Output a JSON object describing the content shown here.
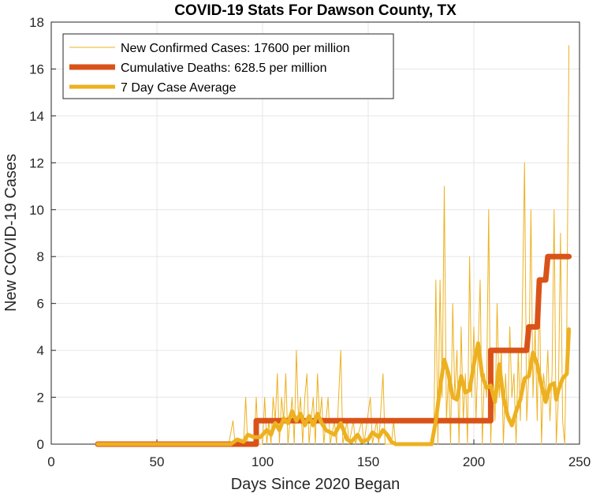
{
  "chart_data": {
    "type": "line",
    "title": "COVID-19 Stats For Dawson County, TX",
    "xlabel": "Days Since 2020 Began",
    "ylabel": "New COVID-19 Cases",
    "xlim": [
      0,
      250
    ],
    "ylim": [
      0,
      18
    ],
    "xticks": [
      0,
      50,
      100,
      150,
      200,
      250
    ],
    "yticks": [
      0,
      2,
      4,
      6,
      8,
      10,
      12,
      14,
      16,
      18
    ],
    "grid": true,
    "legend_position": "top-left",
    "series": [
      {
        "name": "New Confirmed Cases: 17600 per million",
        "color": "#EDB120",
        "style": "thin",
        "points": [
          [
            22,
            0
          ],
          [
            84,
            0
          ],
          [
            86,
            1
          ],
          [
            87,
            0
          ],
          [
            91,
            0
          ],
          [
            92,
            2
          ],
          [
            93,
            0
          ],
          [
            96,
            0
          ],
          [
            97,
            2
          ],
          [
            98,
            0
          ],
          [
            100,
            0
          ],
          [
            101,
            2
          ],
          [
            102,
            0
          ],
          [
            103,
            1
          ],
          [
            104,
            0
          ],
          [
            105,
            2
          ],
          [
            106,
            1
          ],
          [
            107,
            3
          ],
          [
            108,
            0
          ],
          [
            109,
            2
          ],
          [
            110,
            1
          ],
          [
            111,
            3
          ],
          [
            112,
            0
          ],
          [
            113,
            1
          ],
          [
            114,
            2
          ],
          [
            115,
            0
          ],
          [
            116,
            4
          ],
          [
            117,
            1
          ],
          [
            118,
            2
          ],
          [
            119,
            0
          ],
          [
            120,
            2
          ],
          [
            121,
            3
          ],
          [
            122,
            0
          ],
          [
            123,
            1
          ],
          [
            124,
            2
          ],
          [
            125,
            0
          ],
          [
            126,
            3
          ],
          [
            127,
            1
          ],
          [
            128,
            2
          ],
          [
            129,
            0
          ],
          [
            130,
            1
          ],
          [
            131,
            2
          ],
          [
            132,
            0
          ],
          [
            134,
            1
          ],
          [
            135,
            0
          ],
          [
            137,
            4
          ],
          [
            138,
            0
          ],
          [
            140,
            1
          ],
          [
            141,
            0
          ],
          [
            143,
            1
          ],
          [
            144,
            0
          ],
          [
            147,
            1
          ],
          [
            148,
            0
          ],
          [
            151,
            2
          ],
          [
            152,
            0
          ],
          [
            154,
            1
          ],
          [
            155,
            0
          ],
          [
            157,
            3
          ],
          [
            158,
            0
          ],
          [
            161,
            0
          ],
          [
            162,
            1
          ],
          [
            163,
            0
          ],
          [
            181,
            0
          ],
          [
            182,
            7
          ],
          [
            183,
            0
          ],
          [
            184,
            7
          ],
          [
            185,
            2
          ],
          [
            186,
            11
          ],
          [
            187,
            1
          ],
          [
            188,
            3
          ],
          [
            189,
            0
          ],
          [
            190,
            6
          ],
          [
            191,
            2
          ],
          [
            192,
            4
          ],
          [
            193,
            0
          ],
          [
            194,
            5
          ],
          [
            195,
            1
          ],
          [
            196,
            3
          ],
          [
            197,
            0
          ],
          [
            198,
            8
          ],
          [
            199,
            2
          ],
          [
            200,
            5
          ],
          [
            201,
            1
          ],
          [
            202,
            4
          ],
          [
            203,
            7
          ],
          [
            204,
            0
          ],
          [
            205,
            3
          ],
          [
            206,
            2
          ],
          [
            207,
            10
          ],
          [
            208,
            0
          ],
          [
            209,
            3
          ],
          [
            210,
            1
          ],
          [
            211,
            6
          ],
          [
            212,
            2
          ],
          [
            213,
            4
          ],
          [
            214,
            0
          ],
          [
            215,
            3
          ],
          [
            216,
            1
          ],
          [
            217,
            5
          ],
          [
            218,
            2
          ],
          [
            219,
            3
          ],
          [
            220,
            0
          ],
          [
            221,
            4
          ],
          [
            222,
            1
          ],
          [
            223,
            6
          ],
          [
            224,
            12
          ],
          [
            225,
            1
          ],
          [
            226,
            3
          ],
          [
            227,
            10
          ],
          [
            228,
            2
          ],
          [
            229,
            5
          ],
          [
            230,
            1
          ],
          [
            231,
            7
          ],
          [
            232,
            0
          ],
          [
            233,
            3
          ],
          [
            234,
            2
          ],
          [
            235,
            4
          ],
          [
            236,
            1
          ],
          [
            237,
            3
          ],
          [
            238,
            10
          ],
          [
            239,
            0
          ],
          [
            240,
            2
          ],
          [
            241,
            9
          ],
          [
            242,
            1
          ],
          [
            243,
            0
          ],
          [
            244,
            5
          ],
          [
            245,
            17
          ]
        ]
      },
      {
        "name": "Cumulative Deaths: 628.5 per million",
        "color": "#D95319",
        "style": "thick",
        "points": [
          [
            22,
            0
          ],
          [
            97,
            0
          ],
          [
            97,
            1
          ],
          [
            208,
            1
          ],
          [
            208,
            4
          ],
          [
            225,
            4
          ],
          [
            226,
            5
          ],
          [
            230,
            5
          ],
          [
            231,
            7
          ],
          [
            234,
            7
          ],
          [
            235,
            8
          ],
          [
            245,
            8
          ]
        ]
      },
      {
        "name": "7 Day Case Average",
        "color": "#EDB120",
        "style": "medium",
        "points": [
          [
            22,
            0
          ],
          [
            85,
            0
          ],
          [
            88,
            0.2
          ],
          [
            91,
            0.1
          ],
          [
            93,
            0.4
          ],
          [
            96,
            0.3
          ],
          [
            99,
            0.3
          ],
          [
            102,
            0.6
          ],
          [
            104,
            0.4
          ],
          [
            106,
            0.9
          ],
          [
            108,
            0.6
          ],
          [
            110,
            1.1
          ],
          [
            112,
            0.9
          ],
          [
            114,
            1.4
          ],
          [
            116,
            1.0
          ],
          [
            118,
            1.3
          ],
          [
            120,
            0.8
          ],
          [
            122,
            1.2
          ],
          [
            124,
            0.8
          ],
          [
            126,
            1.3
          ],
          [
            128,
            0.9
          ],
          [
            130,
            0.6
          ],
          [
            132,
            0.5
          ],
          [
            134,
            0.4
          ],
          [
            137,
            0.9
          ],
          [
            140,
            0.2
          ],
          [
            142,
            0.1
          ],
          [
            145,
            0.4
          ],
          [
            147,
            0.1
          ],
          [
            150,
            0.2
          ],
          [
            152,
            0.5
          ],
          [
            155,
            0.3
          ],
          [
            157,
            0.6
          ],
          [
            159,
            0.4
          ],
          [
            161,
            0.1
          ],
          [
            163,
            0
          ],
          [
            180,
            0
          ],
          [
            182,
            1.0
          ],
          [
            184,
            2.4
          ],
          [
            186,
            3.6
          ],
          [
            188,
            3.0
          ],
          [
            190,
            2.0
          ],
          [
            192,
            1.9
          ],
          [
            194,
            2.9
          ],
          [
            196,
            2.2
          ],
          [
            198,
            2.3
          ],
          [
            200,
            3.4
          ],
          [
            202,
            4.3
          ],
          [
            204,
            2.9
          ],
          [
            206,
            2.4
          ],
          [
            208,
            2.5
          ],
          [
            210,
            1.8
          ],
          [
            212,
            3.4
          ],
          [
            214,
            2.0
          ],
          [
            216,
            1.2
          ],
          [
            218,
            0.8
          ],
          [
            220,
            1.4
          ],
          [
            222,
            1.9
          ],
          [
            224,
            2.8
          ],
          [
            226,
            2.9
          ],
          [
            228,
            3.9
          ],
          [
            230,
            3.4
          ],
          [
            232,
            2.5
          ],
          [
            234,
            1.8
          ],
          [
            236,
            2.5
          ],
          [
            238,
            2.6
          ],
          [
            239,
            1.9
          ],
          [
            240,
            2.3
          ],
          [
            242,
            2.8
          ],
          [
            244,
            3.0
          ],
          [
            245,
            4.9
          ]
        ]
      }
    ]
  }
}
